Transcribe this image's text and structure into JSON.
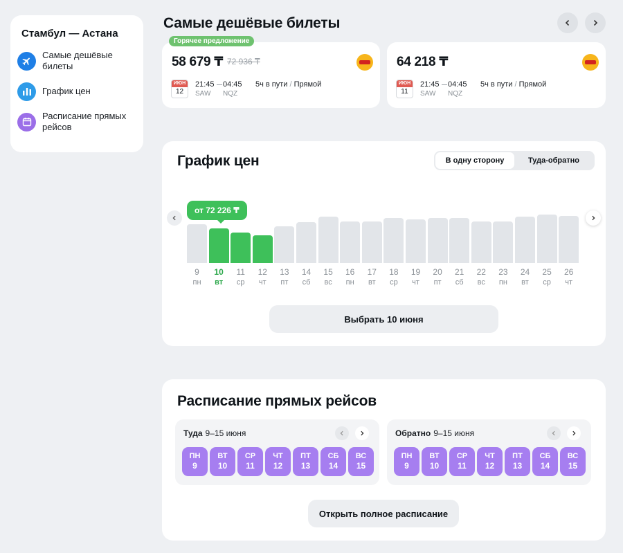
{
  "sidebar": {
    "title": "Стамбул — Астана",
    "items": [
      {
        "label": "Самые дешёвые билеты",
        "icon": "airplane-icon"
      },
      {
        "label": "График цен",
        "icon": "bar-chart-icon"
      },
      {
        "label": "Расписание прямых рейсов",
        "icon": "calendar-icon"
      }
    ]
  },
  "cheapest": {
    "title": "Самые дешёвые билеты",
    "tickets": [
      {
        "badge": "Горячее предложение",
        "price": "58 679 ₸",
        "old_price": "72 936 ₸",
        "month": "ИЮН",
        "day": "12",
        "dep_time": "21:45",
        "arr_time": "04:45",
        "dep_airport": "SAW",
        "arr_airport": "NQZ",
        "duration": "5ч в пути",
        "type": "Прямой"
      },
      {
        "badge": "",
        "price": "64 218 ₸",
        "old_price": "",
        "month": "ИЮН",
        "day": "11",
        "dep_time": "21:45",
        "arr_time": "04:45",
        "dep_airport": "SAW",
        "arr_airport": "NQZ",
        "duration": "5ч в пути",
        "type": "Прямой"
      }
    ]
  },
  "price_chart": {
    "title": "График цен",
    "toggle": [
      "В одну сторону",
      "Туда-обратно"
    ],
    "tooltip": "от 72 226 ₸",
    "select_button": "Выбрать 10 июня"
  },
  "chart_data": {
    "type": "bar",
    "categories": [
      "9",
      "10",
      "11",
      "12",
      "13",
      "14",
      "15",
      "16",
      "17",
      "18",
      "19",
      "20",
      "21",
      "22",
      "23",
      "24",
      "25",
      "26"
    ],
    "weekdays": [
      "пн",
      "вт",
      "ср",
      "чт",
      "пт",
      "сб",
      "вс",
      "пн",
      "вт",
      "ср",
      "чт",
      "пт",
      "сб",
      "вс",
      "пн",
      "вт",
      "ср",
      "чт"
    ],
    "values": [
      58,
      52,
      46,
      42,
      55,
      61,
      70,
      63,
      63,
      68,
      66,
      68,
      68,
      63,
      63,
      70,
      73,
      71
    ],
    "highlighted": [
      1,
      2,
      3
    ],
    "selected_index": 1,
    "colors": {
      "highlight": "#3ec05a",
      "default": "#e2e5e9"
    }
  },
  "schedule": {
    "title": "Расписание прямых рейсов",
    "outbound": {
      "label": "Туда",
      "range": "9–15 июня",
      "days": [
        {
          "dw": "пн",
          "d": "9"
        },
        {
          "dw": "вт",
          "d": "10"
        },
        {
          "dw": "ср",
          "d": "11"
        },
        {
          "dw": "чт",
          "d": "12"
        },
        {
          "dw": "пт",
          "d": "13"
        },
        {
          "dw": "сб",
          "d": "14"
        },
        {
          "dw": "вс",
          "d": "15"
        }
      ]
    },
    "return": {
      "label": "Обратно",
      "range": "9–15 июня",
      "days": [
        {
          "dw": "пн",
          "d": "9"
        },
        {
          "dw": "вт",
          "d": "10"
        },
        {
          "dw": "ср",
          "d": "11"
        },
        {
          "dw": "чт",
          "d": "12"
        },
        {
          "dw": "пт",
          "d": "13"
        },
        {
          "dw": "сб",
          "d": "14"
        },
        {
          "dw": "вс",
          "d": "15"
        }
      ]
    },
    "open_button": "Открыть полное расписание"
  }
}
